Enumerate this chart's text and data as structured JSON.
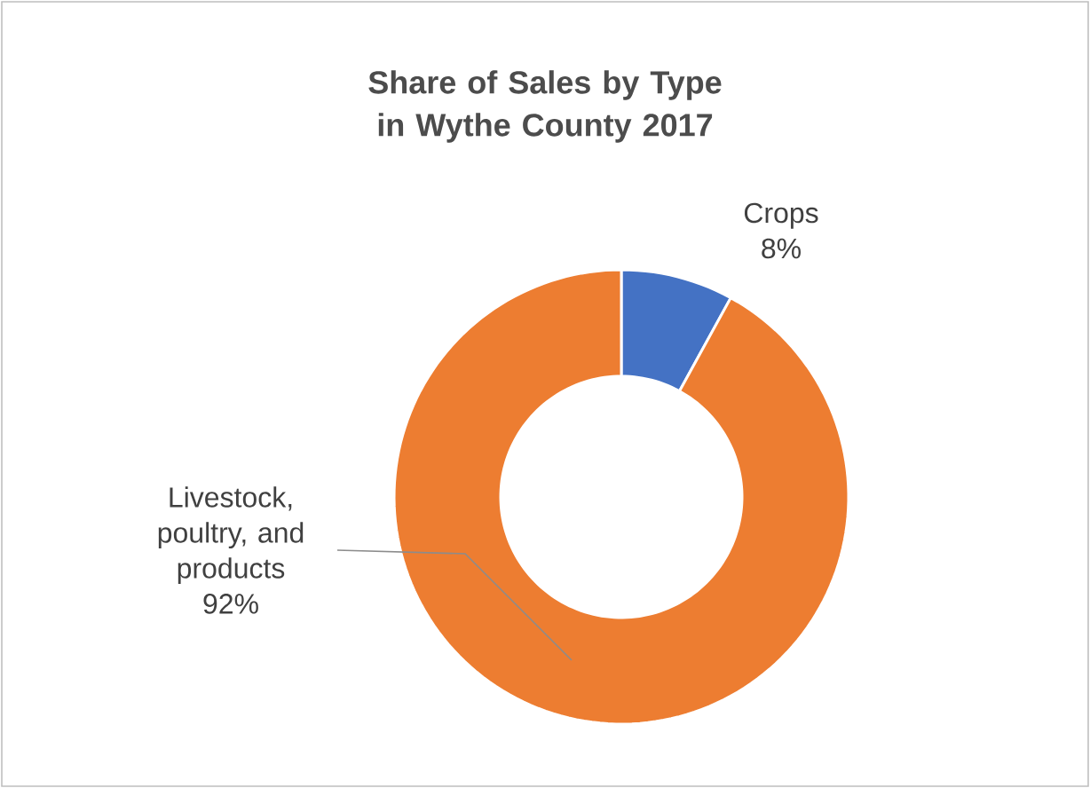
{
  "chart_data": {
    "type": "donut",
    "title": "Share of Sales by Type in Wythe County 2017",
    "categories": [
      "Crops",
      "Livestock, poultry, and products"
    ],
    "values": [
      8,
      92
    ],
    "colors": [
      "#4472c4",
      "#ed7d31"
    ],
    "value_labels": [
      "8%",
      "92%"
    ]
  }
}
